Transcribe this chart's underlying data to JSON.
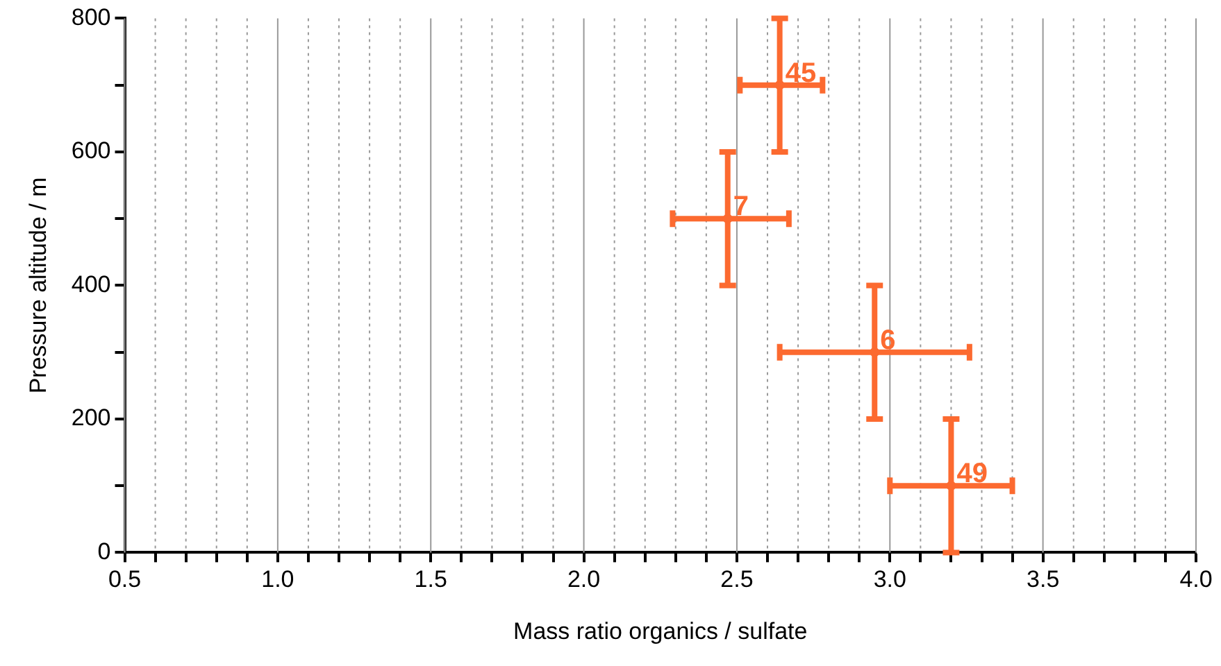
{
  "chart_data": {
    "type": "scatter",
    "xlabel": "Mass ratio organics / sulfate",
    "ylabel": "Pressure altitude / m",
    "series": [
      {
        "color": "#fc6a30",
        "x": [
          2.64,
          2.47,
          2.95,
          3.2
        ],
        "values": [
          700,
          500,
          300,
          100
        ],
        "errors": [
          100,
          100,
          100,
          100
        ],
        "xerrors": [
          [
            2.51,
            2.78
          ],
          [
            2.29,
            2.67
          ],
          [
            2.64,
            3.26
          ],
          [
            3.0,
            3.4
          ]
        ]
      }
    ],
    "grid": "x",
    "legend": false,
    "xlim": [
      0.5,
      4.0
    ],
    "xticks": [
      {
        "value": 0.5,
        "label": "0.5"
      },
      {
        "value": 0.6,
        "label": null
      },
      {
        "value": 0.7,
        "label": null
      },
      {
        "value": 0.8,
        "label": null
      },
      {
        "value": 0.9,
        "label": null
      },
      {
        "value": 1.0,
        "label": "1.0"
      },
      {
        "value": 1.1,
        "label": null
      },
      {
        "value": 1.2,
        "label": null
      },
      {
        "value": 1.3,
        "label": null
      },
      {
        "value": 1.4,
        "label": null
      },
      {
        "value": 1.5,
        "label": "1.5"
      },
      {
        "value": 1.6,
        "label": null
      },
      {
        "value": 1.7,
        "label": null
      },
      {
        "value": 1.8,
        "label": null
      },
      {
        "value": 1.9,
        "label": null
      },
      {
        "value": 2.0,
        "label": "2.0"
      },
      {
        "value": 2.1,
        "label": null
      },
      {
        "value": 2.2,
        "label": null
      },
      {
        "value": 2.3,
        "label": null
      },
      {
        "value": 2.4,
        "label": null
      },
      {
        "value": 2.5,
        "label": "2.5"
      },
      {
        "value": 2.6,
        "label": null
      },
      {
        "value": 2.7,
        "label": null
      },
      {
        "value": 2.8,
        "label": null
      },
      {
        "value": 2.9,
        "label": null
      },
      {
        "value": 3.0,
        "label": "3.0"
      },
      {
        "value": 3.1,
        "label": null
      },
      {
        "value": 3.2,
        "label": null
      },
      {
        "value": 3.3,
        "label": null
      },
      {
        "value": 3.4,
        "label": null
      },
      {
        "value": 3.5,
        "label": "3.5"
      },
      {
        "value": 3.6,
        "label": null
      },
      {
        "value": 3.7,
        "label": null
      },
      {
        "value": 3.8,
        "label": null
      },
      {
        "value": 3.9,
        "label": null
      },
      {
        "value": 4.0,
        "label": "4.0"
      }
    ],
    "ylim": [
      0,
      800
    ],
    "yticks": [
      0,
      {
        "value": 100,
        "label": null
      },
      200,
      {
        "value": 300,
        "label": null
      },
      400,
      {
        "value": 500,
        "label": null
      },
      600,
      {
        "value": 700,
        "label": null
      },
      800
    ],
    "annotations": [
      {
        "text": "45",
        "x": 2.64,
        "y": 700
      },
      {
        "text": "7",
        "x": 2.47,
        "y": 500
      },
      {
        "text": "6",
        "x": 2.95,
        "y": 300
      },
      {
        "text": "49",
        "x": 3.2,
        "y": 100
      }
    ]
  }
}
